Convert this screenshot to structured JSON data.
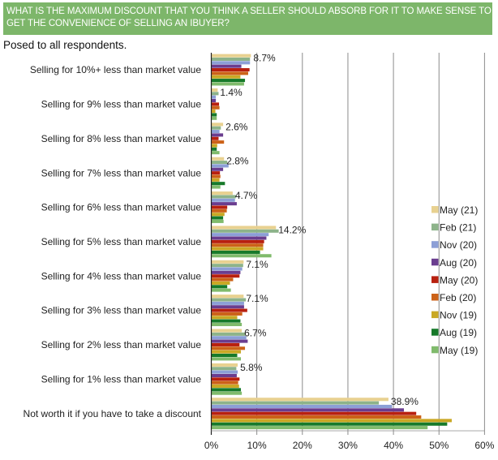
{
  "header": {
    "title": "WHAT IS THE MAXIMUM DISCOUNT THAT YOU THINK A SELLER SHOULD ABSORB FOR IT TO MAKE SENSE TO GET THE CONVENIENCE OF SELLING AN IBUYER?",
    "subtitle": "Posed to all respondents."
  },
  "colors": {
    "banner": "#7db66a"
  },
  "chart_data": {
    "type": "bar",
    "orientation": "horizontal",
    "title": "WHAT IS THE MAXIMUM DISCOUNT THAT YOU THINK A SELLER SHOULD ABSORB FOR IT TO MAKE SENSE TO GET THE CONVENIENCE OF SELLING AN IBUYER?",
    "subtitle": "Posed to all respondents.",
    "xlabel": "",
    "ylabel": "",
    "xlim": [
      0,
      60
    ],
    "x_ticks": [
      "0%",
      "10%",
      "20%",
      "30%",
      "40%",
      "50%",
      "60%"
    ],
    "x_tick_values": [
      0,
      10,
      20,
      30,
      40,
      50,
      60
    ],
    "grid": true,
    "legend_position": "right",
    "categories": [
      "Selling for 10%+ less than market value",
      "Selling for 9% less than market value",
      "Selling for 8% less than market value",
      "Selling for 7% less than market value",
      "Selling for 6% less than market value",
      "Selling for 5% less than market value",
      "Selling for 4% less than market value",
      "Selling for 3% less than market value",
      "Selling for 2% less than market value",
      "Selling for 1% less than market value",
      "Not worth it if you have to take a discount"
    ],
    "data_labels": [
      "8.7%",
      "1.4%",
      "2.6%",
      "2.8%",
      "4.7%",
      "14.2%",
      "7.1%",
      "7.1%",
      "6.7%",
      "5.8%",
      "38.9%"
    ],
    "series": [
      {
        "name": "May (21)",
        "color": "#e8d190",
        "values": [
          8.7,
          1.4,
          2.6,
          2.8,
          4.7,
          14.2,
          7.1,
          7.1,
          6.7,
          5.8,
          38.9
        ]
      },
      {
        "name": "Feb (21)",
        "color": "#8db38a",
        "values": [
          8.5,
          1.6,
          2.1,
          3.5,
          5.4,
          14.8,
          7.0,
          7.6,
          7.4,
          5.5,
          36.8
        ]
      },
      {
        "name": "Nov (20)",
        "color": "#8c9fd6",
        "values": [
          8.5,
          1.0,
          1.8,
          3.8,
          5.2,
          12.6,
          6.8,
          7.2,
          7.7,
          5.8,
          39.7
        ]
      },
      {
        "name": "Aug (20)",
        "color": "#6a3d8f",
        "values": [
          6.6,
          1.0,
          2.6,
          2.6,
          5.6,
          12.1,
          6.4,
          7.2,
          8.0,
          5.6,
          42.3
        ]
      },
      {
        "name": "May (20)",
        "color": "#b8200f",
        "values": [
          8.4,
          1.7,
          1.6,
          1.9,
          3.5,
          11.6,
          6.2,
          7.9,
          6.2,
          6.2,
          45.0
        ]
      },
      {
        "name": "Feb (20)",
        "color": "#cc6218",
        "values": [
          8.1,
          1.8,
          2.8,
          2.0,
          3.4,
          11.4,
          4.8,
          6.8,
          7.4,
          5.9,
          46.1
        ]
      },
      {
        "name": "Nov (19)",
        "color": "#c9a824",
        "values": [
          6.4,
          0.9,
          1.3,
          1.8,
          2.9,
          11.4,
          4.1,
          5.7,
          6.5,
          6.1,
          52.8
        ]
      },
      {
        "name": "Aug (19)",
        "color": "#177a2a",
        "values": [
          7.4,
          1.2,
          1.2,
          3.0,
          2.6,
          10.7,
          3.5,
          6.4,
          5.7,
          6.5,
          51.8
        ]
      },
      {
        "name": "May (19)",
        "color": "#80bb6c",
        "values": [
          7.2,
          1.2,
          1.8,
          2.0,
          2.7,
          13.2,
          4.3,
          6.7,
          6.5,
          6.7,
          47.5
        ]
      }
    ]
  }
}
